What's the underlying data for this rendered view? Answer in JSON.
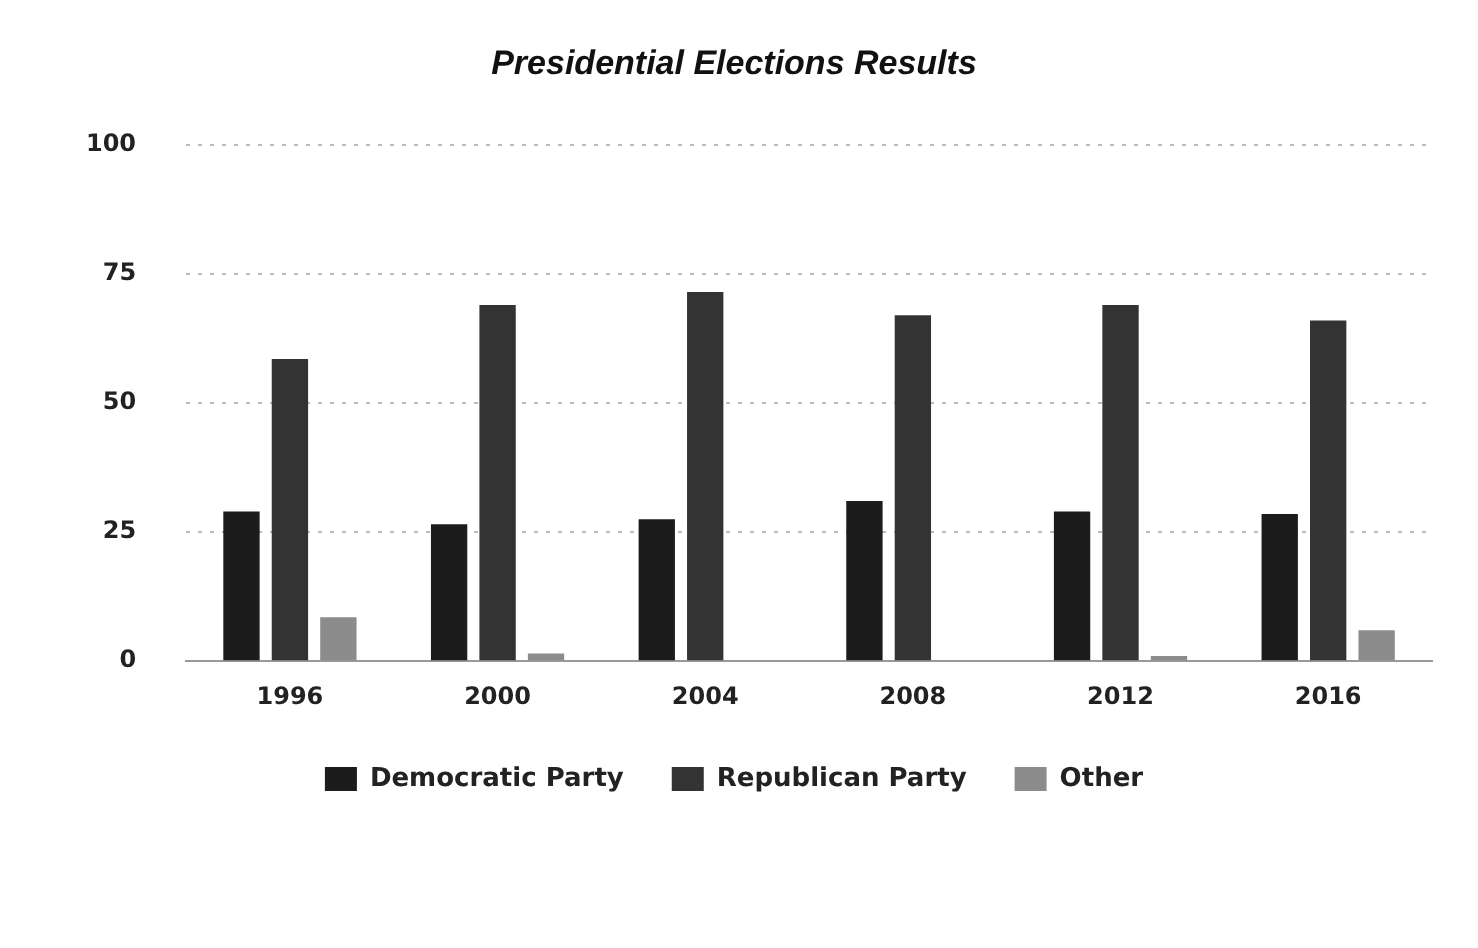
{
  "chart_data": {
    "type": "bar",
    "title": "Presidential Elections Results",
    "categories": [
      "1996",
      "2000",
      "2004",
      "2008",
      "2012",
      "2016"
    ],
    "series": [
      {
        "name": "Democratic Party",
        "color": "#1c1c1c",
        "values": [
          29,
          26.5,
          27.5,
          31,
          29,
          28.5
        ]
      },
      {
        "name": "Republican Party",
        "color": "#333333",
        "values": [
          58.5,
          69,
          71.5,
          67,
          69,
          66
        ]
      },
      {
        "name": "Other",
        "color": "#8c8c8c",
        "values": [
          8.5,
          1.5,
          0,
          0,
          1,
          6
        ]
      }
    ],
    "ylim": [
      0,
      100
    ],
    "yticks": [
      0,
      25,
      50,
      75,
      100
    ],
    "grid": "y",
    "legend": "bottom"
  }
}
